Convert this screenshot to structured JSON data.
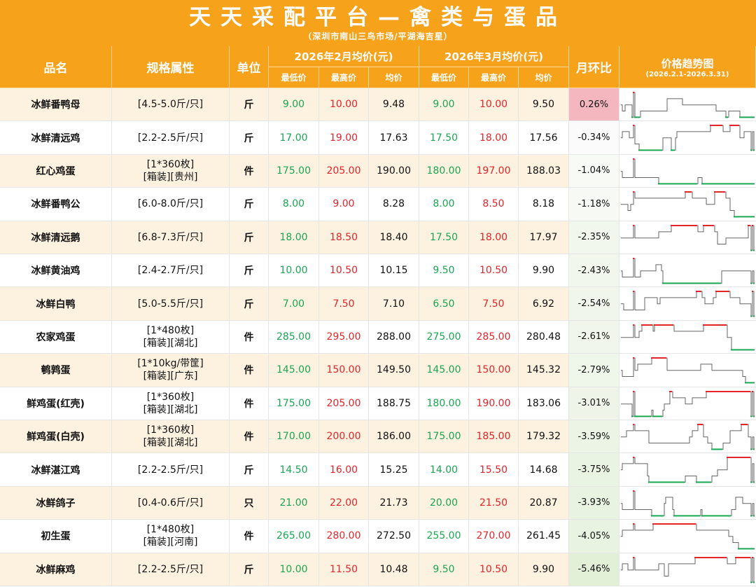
{
  "title": "天天采配平台—禽类与蛋品",
  "subtitle": "（深圳市南山三鸟市场/平湖海吉星）",
  "headers": {
    "name": "品名",
    "spec": "规格属性",
    "unit": "单位",
    "feb": "2026年2月均价(元)",
    "mar": "2026年3月均价(元)",
    "low": "最低价",
    "high": "最高价",
    "avg": "均价",
    "mom": "月环比",
    "trend": "价格趋势图",
    "trend_range": "(2026.2.1-2026.3.31)"
  },
  "colors": {
    "header_bg": "#f7a21b",
    "row_alt_bg": "#fdf1df",
    "low_price": "#1aa653",
    "high_price": "#e3242b",
    "mom_positive_bg": "#f4b7bf",
    "mom_negative_bg": "#e7f3e0"
  },
  "rows": [
    {
      "name": "冰鲜番鸭母",
      "spec1": "[4.5-5.0斤/只]",
      "spec2": "",
      "unit": "斤",
      "feb_low": "9.00",
      "feb_high": "10.00",
      "feb_avg": "9.48",
      "mar_low": "9.00",
      "mar_high": "10.00",
      "mar_avg": "9.50",
      "mom": "0.26%",
      "mom_value": 0.26
    },
    {
      "name": "冰鲜清远鸡",
      "spec1": "[2.2-2.5斤/只]",
      "spec2": "",
      "unit": "斤",
      "feb_low": "17.00",
      "feb_high": "19.00",
      "feb_avg": "17.63",
      "mar_low": "17.50",
      "mar_high": "18.00",
      "mar_avg": "17.56",
      "mom": "-0.34%",
      "mom_value": -0.34
    },
    {
      "name": "红心鸡蛋",
      "spec1": "[1*360枚]",
      "spec2": "[箱装][贵州]",
      "unit": "件",
      "feb_low": "175.00",
      "feb_high": "205.00",
      "feb_avg": "190.00",
      "mar_low": "180.00",
      "mar_high": "197.00",
      "mar_avg": "188.03",
      "mom": "-1.04%",
      "mom_value": -1.04
    },
    {
      "name": "冰鲜番鸭公",
      "spec1": "[6.0-8.0斤/只]",
      "spec2": "",
      "unit": "斤",
      "feb_low": "8.00",
      "feb_high": "9.00",
      "feb_avg": "8.28",
      "mar_low": "8.00",
      "mar_high": "8.50",
      "mar_avg": "8.18",
      "mom": "-1.18%",
      "mom_value": -1.18
    },
    {
      "name": "冰鲜清远鹅",
      "spec1": "[6.8-7.3斤/只]",
      "spec2": "",
      "unit": "斤",
      "feb_low": "18.00",
      "feb_high": "18.50",
      "feb_avg": "18.40",
      "mar_low": "17.50",
      "mar_high": "18.00",
      "mar_avg": "17.97",
      "mom": "-2.35%",
      "mom_value": -2.35
    },
    {
      "name": "冰鲜黄油鸡",
      "spec1": "[2.4-2.7斤/只]",
      "spec2": "",
      "unit": "斤",
      "feb_low": "10.00",
      "feb_high": "10.50",
      "feb_avg": "10.15",
      "mar_low": "9.50",
      "mar_high": "10.50",
      "mar_avg": "9.90",
      "mom": "-2.43%",
      "mom_value": -2.43
    },
    {
      "name": "冰鲜白鸭",
      "spec1": "[5.0-5.5斤/只]",
      "spec2": "",
      "unit": "斤",
      "feb_low": "7.00",
      "feb_high": "7.50",
      "feb_avg": "7.10",
      "mar_low": "6.50",
      "mar_high": "7.50",
      "mar_avg": "6.92",
      "mom": "-2.54%",
      "mom_value": -2.54
    },
    {
      "name": "农家鸡蛋",
      "spec1": "[1*480枚]",
      "spec2": "[箱装][湖北]",
      "unit": "件",
      "feb_low": "285.00",
      "feb_high": "295.00",
      "feb_avg": "288.00",
      "mar_low": "275.00",
      "mar_high": "285.00",
      "mar_avg": "280.48",
      "mom": "-2.61%",
      "mom_value": -2.61
    },
    {
      "name": "鹌鹑蛋",
      "spec1": "[1*10kg/带筐]",
      "spec2": "[箱装][广东]",
      "unit": "件",
      "feb_low": "145.00",
      "feb_high": "150.00",
      "feb_avg": "149.50",
      "mar_low": "145.00",
      "mar_high": "150.00",
      "mar_avg": "145.32",
      "mom": "-2.79%",
      "mom_value": -2.79
    },
    {
      "name": "鲜鸡蛋(红壳)",
      "spec1": "[1*360枚]",
      "spec2": "[箱装][湖北]",
      "unit": "件",
      "feb_low": "175.00",
      "feb_high": "205.00",
      "feb_avg": "188.75",
      "mar_low": "180.00",
      "mar_high": "190.00",
      "mar_avg": "183.06",
      "mom": "-3.01%",
      "mom_value": -3.01
    },
    {
      "name": "鲜鸡蛋(白壳)",
      "spec1": "[1*360枚]",
      "spec2": "[箱装][湖北]",
      "unit": "件",
      "feb_low": "170.00",
      "feb_high": "200.00",
      "feb_avg": "186.00",
      "mar_low": "175.00",
      "mar_high": "185.00",
      "mar_avg": "179.32",
      "mom": "-3.59%",
      "mom_value": -3.59
    },
    {
      "name": "冰鲜湛江鸡",
      "spec1": "[2.2-2.5斤/只]",
      "spec2": "",
      "unit": "斤",
      "feb_low": "14.50",
      "feb_high": "16.00",
      "feb_avg": "15.25",
      "mar_low": "14.00",
      "mar_high": "15.50",
      "mar_avg": "14.68",
      "mom": "-3.75%",
      "mom_value": -3.75
    },
    {
      "name": "冰鲜鸽子",
      "spec1": "[0.4-0.6斤/只]",
      "spec2": "",
      "unit": "只",
      "feb_low": "21.00",
      "feb_high": "22.00",
      "feb_avg": "21.73",
      "mar_low": "20.00",
      "mar_high": "21.50",
      "mar_avg": "20.87",
      "mom": "-3.93%",
      "mom_value": -3.93
    },
    {
      "name": "初生蛋",
      "spec1": "[1*480枚]",
      "spec2": "[箱装][河南]",
      "unit": "件",
      "feb_low": "265.00",
      "feb_high": "280.00",
      "feb_avg": "272.50",
      "mar_low": "255.00",
      "mar_high": "270.00",
      "mar_avg": "261.45",
      "mom": "-4.05%",
      "mom_value": -4.05
    },
    {
      "name": "冰鲜麻鸡",
      "spec1": "[2.2-2.5斤/只]",
      "spec2": "",
      "unit": "斤",
      "feb_low": "10.00",
      "feb_high": "11.50",
      "feb_avg": "10.48",
      "mar_low": "9.50",
      "mar_high": "10.50",
      "mar_avg": "9.90",
      "mom": "-5.46%",
      "mom_value": -5.46
    }
  ],
  "trends": [
    [
      2,
      2,
      2,
      2,
      1,
      0,
      0,
      0,
      0,
      1,
      1,
      1,
      1,
      4,
      4,
      4,
      4,
      4,
      4,
      4,
      4,
      4,
      4,
      4,
      4,
      4,
      4,
      0,
      0,
      0,
      0,
      0,
      0,
      0,
      4,
      4,
      4,
      4,
      4,
      4,
      4,
      4,
      4,
      4,
      4,
      4,
      4,
      4,
      4,
      4,
      4,
      4,
      4,
      4,
      4,
      4,
      4,
      4,
      4,
      0,
      0,
      0,
      0,
      0,
      0,
      0,
      0,
      0,
      0,
      0,
      0,
      0,
      0,
      0,
      0,
      0,
      0,
      0,
      0,
      0,
      0,
      0,
      0,
      0,
      0,
      0,
      0,
      4,
      4,
      4,
      4,
      4,
      4,
      4,
      2,
      2,
      4,
      4,
      4,
      4,
      4,
      4,
      4,
      4,
      4,
      4,
      4,
      4,
      4,
      4,
      4,
      4,
      4,
      4,
      4,
      4,
      4,
      4,
      4,
      4,
      4,
      4,
      4,
      4,
      4,
      4,
      4,
      4,
      4,
      4,
      4,
      4,
      4,
      4,
      4,
      0,
      0,
      0,
      0,
      0,
      0,
      0,
      0,
      0,
      0,
      0,
      0,
      0,
      0,
      0,
      0,
      0,
      0,
      0,
      0,
      0,
      0,
      0,
      0,
      0,
      0,
      0,
      0,
      0,
      0,
      0,
      0,
      0,
      0,
      0,
      0,
      0,
      0,
      0,
      0,
      0,
      0,
      0,
      0,
      0,
      0,
      0,
      0,
      0,
      0,
      0
    ],
    [
      1,
      1,
      1,
      1,
      1,
      1,
      1,
      1,
      1,
      1,
      1,
      1,
      1,
      1,
      1,
      1,
      1,
      1,
      1,
      1,
      1,
      1,
      1,
      1,
      1,
      1,
      1,
      1,
      1,
      1,
      1,
      1,
      1,
      1,
      1,
      1,
      3,
      3,
      3,
      3,
      3,
      3,
      3,
      3,
      3,
      3,
      4,
      4,
      4,
      4,
      4,
      4,
      4,
      4,
      4,
      4,
      4,
      4,
      4,
      4,
      4,
      4,
      4,
      4,
      4,
      4,
      4,
      4,
      4,
      4,
      4,
      4,
      4,
      4,
      4,
      4,
      4,
      4,
      4,
      4,
      4,
      4,
      4,
      4,
      4,
      4,
      4,
      4,
      4,
      4,
      4,
      4,
      4,
      4,
      4,
      4,
      4,
      4,
      4,
      4,
      4,
      4,
      4,
      4,
      4,
      4,
      4,
      4,
      4,
      4,
      4,
      4,
      4,
      4,
      4,
      4,
      4,
      4,
      4,
      4,
      4,
      4,
      4,
      4,
      4,
      4,
      4,
      4,
      4,
      4,
      4,
      4,
      4,
      4,
      4,
      4,
      4,
      4,
      4,
      4,
      4,
      4,
      4,
      4,
      4,
      4,
      4,
      4,
      4,
      4,
      4,
      4,
      4,
      4,
      4,
      4,
      4,
      4,
      4,
      4,
      4,
      4,
      4,
      4,
      4,
      4,
      4,
      4,
      4,
      4,
      4,
      4,
      4,
      4,
      4,
      4,
      4,
      4,
      4,
      4,
      4,
      4,
      4,
      4,
      4,
      4,
      4,
      4,
      4,
      4,
      4,
      4,
      4,
      4,
      4,
      4
    ],
    [
      3,
      3,
      2,
      2,
      1,
      1,
      1,
      2,
      2,
      2,
      2,
      2,
      2,
      2,
      2,
      2,
      2,
      2,
      2,
      2,
      2,
      2,
      2,
      2,
      2,
      2,
      2,
      2,
      2,
      2,
      2,
      2,
      2,
      2,
      2,
      2,
      2,
      2,
      2,
      2,
      2,
      2,
      2,
      2,
      2,
      2,
      2,
      2,
      2,
      2,
      2,
      2,
      2,
      2,
      2,
      2,
      2,
      2,
      2,
      2,
      2,
      2,
      2,
      2,
      2,
      2,
      2,
      2,
      2,
      2,
      2,
      2,
      2,
      2,
      2,
      2,
      2,
      2,
      2,
      2,
      2,
      2,
      2,
      2,
      2,
      2,
      2,
      2,
      2,
      2,
      2,
      2,
      2,
      2,
      2,
      2,
      2,
      2,
      2,
      2,
      2,
      2,
      2,
      2,
      2,
      2,
      2,
      2,
      2,
      2,
      2,
      2,
      2,
      2,
      2,
      2,
      2,
      2,
      2,
      2,
      2,
      2,
      2,
      2,
      2,
      2,
      2,
      2,
      2,
      2,
      2,
      2,
      2,
      2,
      2,
      2,
      2,
      2,
      2,
      2,
      2,
      2,
      2,
      2,
      2,
      2,
      2,
      2,
      2,
      2,
      2,
      2,
      2,
      2,
      2,
      2,
      2,
      2,
      2,
      2,
      2,
      2,
      2,
      2,
      2,
      2,
      2,
      2,
      2,
      2,
      2,
      2,
      2,
      2,
      2,
      2,
      2,
      2,
      2,
      2,
      2,
      2,
      2,
      2,
      2,
      2,
      2,
      2,
      2,
      2,
      2,
      2,
      2,
      2,
      2
    ],
    [
      0,
      0,
      0,
      0,
      0,
      0,
      0,
      0,
      0,
      0,
      0,
      0,
      0,
      0,
      0,
      0,
      0,
      0,
      0,
      0,
      0,
      0,
      0,
      0,
      0,
      0,
      0,
      0,
      0,
      0,
      0,
      0,
      0,
      0,
      0,
      0,
      0,
      0,
      0,
      0,
      0,
      0,
      0,
      0,
      0,
      0,
      0,
      0,
      0,
      0,
      0,
      0,
      0,
      0,
      0,
      0,
      0,
      0,
      0,
      0,
      0,
      0,
      0,
      0,
      0,
      0,
      0,
      0,
      0,
      0,
      0,
      0,
      0,
      0,
      0,
      0,
      0,
      0,
      0,
      0,
      0,
      0,
      0,
      0,
      0,
      0,
      0,
      0,
      0,
      0,
      0,
      0,
      0,
      0,
      0,
      0,
      0,
      0,
      0,
      0,
      0,
      0,
      0,
      0,
      0,
      0,
      0,
      0,
      0,
      0,
      0,
      0,
      0,
      0,
      0,
      0,
      0,
      0,
      0,
      0,
      0,
      0,
      0,
      0,
      0,
      0,
      0,
      0,
      0,
      0,
      0,
      0,
      0,
      0,
      0,
      0,
      0,
      0,
      0,
      0,
      0,
      0,
      0,
      0,
      0,
      0,
      0,
      0,
      0,
      0,
      0,
      0,
      0,
      0,
      0,
      0,
      0,
      0,
      0,
      0,
      0,
      0,
      0,
      0,
      0,
      0,
      0,
      0,
      0,
      0,
      0,
      0,
      0,
      0,
      0,
      0,
      0,
      0,
      0,
      0,
      0,
      0,
      0,
      0,
      0,
      0,
      0,
      0,
      0,
      0,
      0,
      0,
      0,
      0,
      0,
      0,
      0,
      0,
      0,
      0
    ],
    [
      4,
      4,
      4,
      4,
      4,
      4,
      4,
      4,
      4,
      4,
      4,
      4,
      4,
      4,
      4,
      4,
      4,
      4,
      4,
      4,
      4,
      4,
      4,
      4,
      4,
      4,
      4,
      4,
      4,
      4,
      4,
      4,
      4,
      4,
      4,
      4,
      4,
      4,
      4,
      4,
      4,
      4,
      4,
      4,
      4,
      4,
      4,
      4,
      4,
      4,
      4,
      4,
      4,
      4,
      4,
      4,
      4,
      4,
      4,
      4,
      4,
      4,
      4,
      4,
      4,
      4,
      4,
      4,
      4,
      4,
      4,
      4,
      4,
      4,
      4,
      4,
      4,
      4,
      4,
      4,
      4,
      4,
      4,
      4,
      4,
      4,
      4,
      4,
      4,
      4,
      4,
      4,
      4,
      4,
      4,
      4,
      4,
      4,
      4,
      4,
      4,
      4,
      4,
      4,
      4,
      4,
      4,
      4,
      4,
      4,
      4,
      4,
      4,
      4,
      4,
      4,
      4,
      4,
      4,
      4,
      4,
      4,
      4,
      4,
      4,
      4,
      4,
      4,
      4,
      4,
      4,
      4,
      4,
      4,
      4,
      4,
      4,
      4,
      4,
      4,
      4,
      4,
      4,
      4,
      4,
      4,
      4,
      4,
      4,
      4,
      4,
      4,
      4,
      4,
      4,
      4,
      4,
      4,
      4,
      4,
      4,
      4,
      4,
      4,
      4,
      4,
      4,
      4,
      4,
      4,
      4,
      4,
      4,
      4,
      4,
      4,
      4,
      4,
      4,
      4,
      4,
      4,
      4,
      4,
      4,
      4,
      4,
      4,
      4,
      4,
      4,
      4,
      4,
      4,
      4,
      4
    ]
  ]
}
